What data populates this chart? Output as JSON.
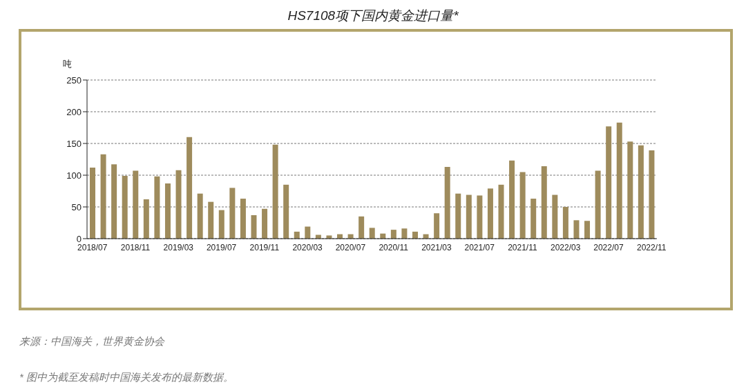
{
  "chart_data": {
    "type": "bar",
    "title": "HS7108项下国内黄金进口量*",
    "ylabel": "吨",
    "categories": [
      "2018/07",
      null,
      null,
      null,
      "2018/11",
      null,
      null,
      null,
      "2019/03",
      null,
      null,
      null,
      "2019/07",
      null,
      null,
      null,
      "2019/11",
      null,
      null,
      null,
      "2020/03",
      null,
      null,
      null,
      "2020/07",
      null,
      null,
      null,
      "2020/11",
      null,
      null,
      null,
      "2021/03",
      null,
      null,
      null,
      "2021/07",
      null,
      null,
      null,
      "2021/11",
      null,
      null,
      null,
      "2022/03",
      null,
      null,
      null,
      "2022/07",
      null,
      null,
      null,
      "2022/11"
    ],
    "values": [
      112,
      133,
      117,
      99,
      107,
      62,
      98,
      87,
      108,
      160,
      71,
      58,
      45,
      80,
      63,
      37,
      47,
      148,
      85,
      11,
      19,
      6,
      5,
      7,
      7,
      35,
      17,
      8,
      14,
      16,
      11,
      7,
      40,
      113,
      71,
      69,
      68,
      79,
      85,
      123,
      105,
      63,
      114,
      69,
      50,
      29,
      28,
      107,
      177,
      183,
      153,
      147,
      139
    ],
    "color": "#9e8b5c",
    "ylim": [
      0,
      250
    ],
    "yticks": [
      0,
      50,
      100,
      150,
      200,
      250
    ],
    "grid": "y",
    "annotations": [
      "来源：中国海关，世界黄金协会",
      "* 图中为截至发稿时中国海关发布的最新数据。"
    ]
  }
}
